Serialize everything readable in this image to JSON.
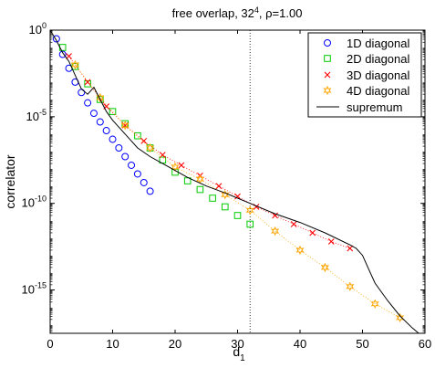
{
  "chart_data": {
    "type": "scatter",
    "title": {
      "prefix": "free overlap, 32",
      "sup": "4",
      "suffix": ", ρ=1.00"
    },
    "xlabel": {
      "main": "d",
      "sub": "1"
    },
    "ylabel": "correlator",
    "xlim": [
      0,
      60
    ],
    "ylim": [
      -17.5,
      0
    ],
    "y_scale": "log10",
    "x_ticks": [
      "0",
      "10",
      "20",
      "30",
      "40",
      "50",
      "60"
    ],
    "y_ticks": [
      {
        "base": "10",
        "exp": "0"
      },
      {
        "base": "10",
        "exp": "-5"
      },
      {
        "base": "10",
        "exp": "-10"
      },
      {
        "base": "10",
        "exp": "-15"
      }
    ],
    "vline_x": 32,
    "legend_position": "top-right",
    "series": [
      {
        "name": "1D diagonal",
        "marker": "circle",
        "color": "#0000ff",
        "x": [
          1,
          2,
          3,
          4,
          5,
          6,
          7,
          8,
          9,
          10,
          11,
          12,
          13,
          14,
          15,
          16
        ],
        "y": [
          -0.5,
          -1.4,
          -2.2,
          -3.0,
          -3.6,
          -4.2,
          -4.8,
          -5.3,
          -5.8,
          -6.3,
          -6.8,
          -7.3,
          -7.8,
          -8.3,
          -8.8,
          -9.3
        ]
      },
      {
        "name": "2D diagonal",
        "marker": "square",
        "color": "#00cc00",
        "x": [
          2,
          4,
          6,
          8,
          10,
          12,
          14,
          16,
          18,
          20,
          22,
          24,
          26,
          28,
          30,
          32
        ],
        "y": [
          -1.0,
          -2.1,
          -3.1,
          -4.0,
          -4.7,
          -5.4,
          -6.1,
          -6.8,
          -7.5,
          -8.2,
          -8.7,
          -9.2,
          -9.7,
          -10.2,
          -10.7,
          -11.2
        ]
      },
      {
        "name": "3D diagonal",
        "marker": "x",
        "color": "#ff0000",
        "x": [
          3,
          6,
          9,
          12,
          15,
          18,
          21,
          24,
          27,
          30,
          33,
          36,
          39,
          42,
          45,
          48
        ],
        "y": [
          -1.5,
          -3.0,
          -4.4,
          -5.5,
          -6.4,
          -7.2,
          -7.8,
          -8.4,
          -9.0,
          -9.6,
          -10.2,
          -10.7,
          -11.2,
          -11.7,
          -12.2,
          -12.6
        ]
      },
      {
        "name": "4D diagonal",
        "marker": "star",
        "color": "#ffa500",
        "x": [
          4,
          8,
          12,
          16,
          20,
          24,
          28,
          32,
          36,
          40,
          44,
          48,
          52,
          56
        ],
        "y": [
          -2.0,
          -3.9,
          -5.5,
          -6.8,
          -7.9,
          -8.6,
          -9.5,
          -10.4,
          -11.6,
          -12.7,
          -13.7,
          -14.8,
          -15.8,
          -16.6
        ]
      },
      {
        "name": "supremum",
        "marker": "line",
        "color": "#000000",
        "x": [
          0,
          1,
          2,
          3,
          4,
          5,
          6,
          7,
          8,
          9,
          10,
          11,
          12,
          13,
          14,
          16,
          18,
          20,
          22,
          25,
          28,
          32,
          36,
          40,
          44,
          48,
          49,
          50,
          51,
          52,
          54,
          56,
          58,
          60
        ],
        "y": [
          0.0,
          -0.6,
          -1.3,
          -1.8,
          -2.6,
          -3.4,
          -3.7,
          -3.3,
          -4.0,
          -4.7,
          -5.2,
          -5.6,
          -6.0,
          -6.4,
          -6.8,
          -7.3,
          -7.7,
          -8.1,
          -8.5,
          -9.0,
          -9.4,
          -10.0,
          -10.6,
          -11.1,
          -11.7,
          -12.4,
          -12.6,
          -13.0,
          -13.8,
          -14.6,
          -15.6,
          -16.5,
          -17.2,
          -17.8
        ]
      }
    ]
  }
}
